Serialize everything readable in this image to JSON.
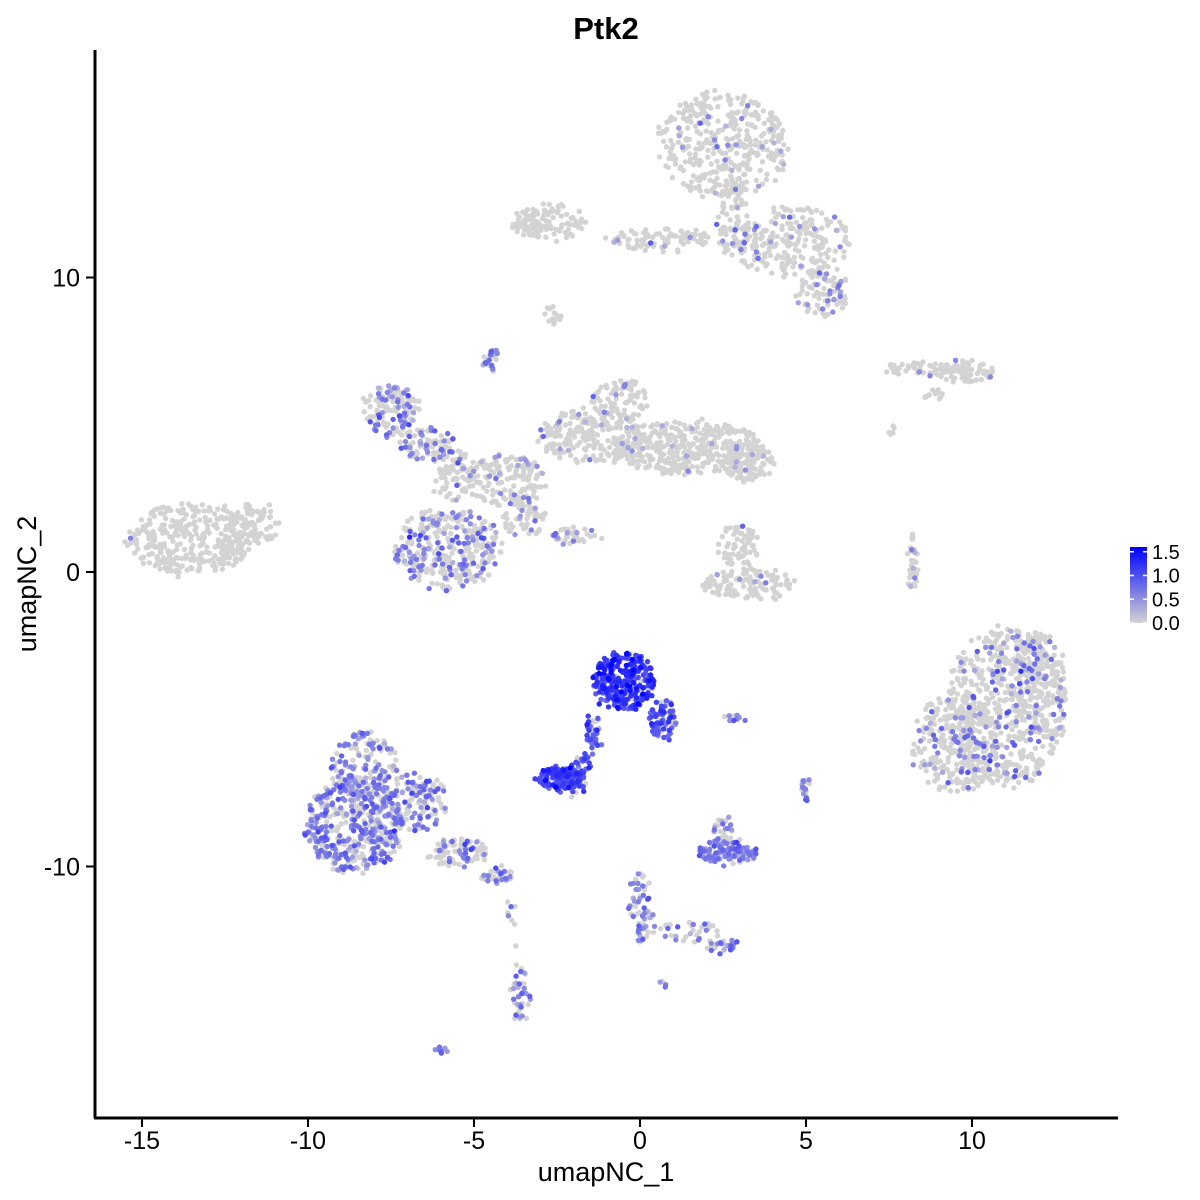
{
  "chart_data": {
    "type": "scatter",
    "title": "Ptk2",
    "xlabel": "umapNC_1",
    "ylabel": "umapNC_2",
    "xlim": [
      -16.5,
      14.5
    ],
    "ylim": [
      -18.5,
      17.5
    ],
    "x_ticks": [
      -15,
      -10,
      -5,
      0,
      5,
      10
    ],
    "x_tick_labels": [
      "-15",
      "-10",
      "-5",
      "0",
      "5",
      "10"
    ],
    "y_ticks": [
      -10,
      0,
      10
    ],
    "y_tick_labels": [
      "-10",
      "0",
      "10"
    ],
    "grid": false,
    "legend": {
      "position": "right",
      "type": "colorbar",
      "values": [
        0.0,
        0.5,
        1.0,
        1.5
      ],
      "labels": [
        "0.0",
        "0.5",
        "1.0",
        "1.5"
      ],
      "max": 1.6
    },
    "colors": {
      "low": "#d3d3d3",
      "high": "#0000ff"
    },
    "clusters": [
      {
        "cx": 2.5,
        "cy": 14.5,
        "rx": 2.0,
        "ry": 1.8,
        "n": 380,
        "expr_frac": 0.07,
        "expr_mean": 0.5
      },
      {
        "cx": 4.5,
        "cy": 11.2,
        "rx": 1.8,
        "ry": 1.2,
        "n": 220,
        "expr_frac": 0.07,
        "expr_mean": 0.5
      },
      {
        "cx": 5.5,
        "cy": 9.5,
        "rx": 0.8,
        "ry": 0.8,
        "n": 90,
        "expr_frac": 0.2,
        "expr_mean": 0.55
      },
      {
        "cx": -2.8,
        "cy": 11.9,
        "rx": 1.1,
        "ry": 0.6,
        "n": 120,
        "expr_frac": 0.0,
        "expr_mean": 0.0
      },
      {
        "cx": 0.5,
        "cy": 11.3,
        "rx": 1.6,
        "ry": 0.35,
        "n": 90,
        "expr_frac": 0.04,
        "expr_mean": 0.45
      },
      {
        "cx": 2.8,
        "cy": 12.0,
        "rx": 0.5,
        "ry": 1.4,
        "n": 80,
        "expr_frac": 0.06,
        "expr_mean": 0.5
      },
      {
        "cx": -2.6,
        "cy": 8.8,
        "rx": 0.25,
        "ry": 0.4,
        "n": 14,
        "expr_frac": 0.0,
        "expr_mean": 0.0
      },
      {
        "cx": -1.8,
        "cy": 4.7,
        "rx": 0.4,
        "ry": 0.5,
        "n": 18,
        "expr_frac": 0.0,
        "expr_mean": 0.0
      },
      {
        "cx": -4.5,
        "cy": 7.2,
        "rx": 0.2,
        "ry": 0.4,
        "n": 25,
        "expr_frac": 0.5,
        "expr_mean": 0.6
      },
      {
        "cx": 8.5,
        "cy": 6.9,
        "rx": 1.2,
        "ry": 0.25,
        "n": 50,
        "expr_frac": 0.06,
        "expr_mean": 0.5
      },
      {
        "cx": 9.8,
        "cy": 6.8,
        "rx": 0.9,
        "ry": 0.35,
        "n": 60,
        "expr_frac": 0.04,
        "expr_mean": 0.5
      },
      {
        "cx": 8.9,
        "cy": 6.0,
        "rx": 0.3,
        "ry": 0.2,
        "n": 10,
        "expr_frac": 0.0,
        "expr_mean": 0.0
      },
      {
        "cx": 7.6,
        "cy": 4.8,
        "rx": 0.15,
        "ry": 0.25,
        "n": 6,
        "expr_frac": 0.0,
        "expr_mean": 0.0
      },
      {
        "cx": -13.5,
        "cy": 1.1,
        "rx": 2.0,
        "ry": 1.2,
        "n": 330,
        "expr_frac": 0.01,
        "expr_mean": 0.5
      },
      {
        "cx": -11.6,
        "cy": 1.6,
        "rx": 0.8,
        "ry": 0.7,
        "n": 80,
        "expr_frac": 0.0,
        "expr_mean": 0.0
      },
      {
        "cx": -7.5,
        "cy": 5.5,
        "rx": 0.8,
        "ry": 0.9,
        "n": 130,
        "expr_frac": 0.4,
        "expr_mean": 0.6
      },
      {
        "cx": -6.4,
        "cy": 4.3,
        "rx": 0.8,
        "ry": 0.6,
        "n": 80,
        "expr_frac": 0.3,
        "expr_mean": 0.6
      },
      {
        "cx": -5.6,
        "cy": 3.3,
        "rx": 0.7,
        "ry": 0.9,
        "n": 80,
        "expr_frac": 0.15,
        "expr_mean": 0.6
      },
      {
        "cx": -4.0,
        "cy": 3.1,
        "rx": 1.2,
        "ry": 0.9,
        "n": 150,
        "expr_frac": 0.07,
        "expr_mean": 0.5
      },
      {
        "cx": -5.8,
        "cy": 0.8,
        "rx": 1.6,
        "ry": 1.4,
        "n": 330,
        "expr_frac": 0.32,
        "expr_mean": 0.6
      },
      {
        "cx": -3.5,
        "cy": 1.8,
        "rx": 0.6,
        "ry": 0.7,
        "n": 60,
        "expr_frac": 0.15,
        "expr_mean": 0.6
      },
      {
        "cx": -1.5,
        "cy": 4.6,
        "rx": 1.6,
        "ry": 0.9,
        "n": 180,
        "expr_frac": 0.06,
        "expr_mean": 0.5
      },
      {
        "cx": -0.6,
        "cy": 5.7,
        "rx": 0.9,
        "ry": 0.9,
        "n": 90,
        "expr_frac": 0.06,
        "expr_mean": 0.5
      },
      {
        "cx": 1.5,
        "cy": 4.2,
        "rx": 2.4,
        "ry": 0.9,
        "n": 400,
        "expr_frac": 0.04,
        "expr_mean": 0.5
      },
      {
        "cx": 3.2,
        "cy": 3.7,
        "rx": 0.8,
        "ry": 0.6,
        "n": 90,
        "expr_frac": 0.04,
        "expr_mean": 0.5
      },
      {
        "cx": -2.0,
        "cy": 1.2,
        "rx": 0.8,
        "ry": 0.25,
        "n": 40,
        "expr_frac": 0.25,
        "expr_mean": 0.55
      },
      {
        "cx": 3.0,
        "cy": 0.8,
        "rx": 0.6,
        "ry": 0.8,
        "n": 70,
        "expr_frac": 0.02,
        "expr_mean": 0.5
      },
      {
        "cx": 3.3,
        "cy": -0.4,
        "rx": 1.5,
        "ry": 0.5,
        "n": 120,
        "expr_frac": 0.03,
        "expr_mean": 0.5
      },
      {
        "cx": 8.2,
        "cy": 0.4,
        "rx": 0.15,
        "ry": 0.9,
        "n": 35,
        "expr_frac": 0.08,
        "expr_mean": 0.5
      },
      {
        "cx": 11.0,
        "cy": -4.6,
        "rx": 1.8,
        "ry": 2.7,
        "n": 560,
        "expr_frac": 0.12,
        "expr_mean": 0.6
      },
      {
        "cx": 9.5,
        "cy": -5.8,
        "rx": 1.3,
        "ry": 1.7,
        "n": 300,
        "expr_frac": 0.12,
        "expr_mean": 0.6
      },
      {
        "cx": 12.0,
        "cy": -3.8,
        "rx": 0.8,
        "ry": 1.8,
        "n": 180,
        "expr_frac": 0.12,
        "expr_mean": 0.6
      },
      {
        "cx": -0.5,
        "cy": -3.7,
        "rx": 0.9,
        "ry": 1.0,
        "n": 280,
        "expr_frac": 0.9,
        "expr_mean": 1.15
      },
      {
        "cx": 0.7,
        "cy": -5.0,
        "rx": 0.4,
        "ry": 0.7,
        "n": 70,
        "expr_frac": 0.8,
        "expr_mean": 0.9
      },
      {
        "cx": -1.4,
        "cy": -5.5,
        "rx": 0.25,
        "ry": 0.6,
        "n": 40,
        "expr_frac": 0.7,
        "expr_mean": 0.85
      },
      {
        "cx": -2.4,
        "cy": -7.0,
        "rx": 0.7,
        "ry": 0.35,
        "n": 150,
        "expr_frac": 0.9,
        "expr_mean": 1.05
      },
      {
        "cx": -1.8,
        "cy": -6.5,
        "rx": 0.3,
        "ry": 0.4,
        "n": 30,
        "expr_frac": 0.8,
        "expr_mean": 0.9
      },
      {
        "cx": -8.6,
        "cy": -8.6,
        "rx": 1.5,
        "ry": 1.6,
        "n": 440,
        "expr_frac": 0.6,
        "expr_mean": 0.62
      },
      {
        "cx": -8.3,
        "cy": -6.6,
        "rx": 1.0,
        "ry": 1.2,
        "n": 160,
        "expr_frac": 0.55,
        "expr_mean": 0.62
      },
      {
        "cx": -6.8,
        "cy": -7.8,
        "rx": 1.0,
        "ry": 1.0,
        "n": 140,
        "expr_frac": 0.45,
        "expr_mean": 0.62
      },
      {
        "cx": -5.5,
        "cy": -9.5,
        "rx": 0.9,
        "ry": 0.5,
        "n": 90,
        "expr_frac": 0.35,
        "expr_mean": 0.62
      },
      {
        "cx": -4.3,
        "cy": -10.3,
        "rx": 0.5,
        "ry": 0.25,
        "n": 40,
        "expr_frac": 0.4,
        "expr_mean": 0.62
      },
      {
        "cx": -3.6,
        "cy": -14.3,
        "rx": 0.25,
        "ry": 1.0,
        "n": 40,
        "expr_frac": 0.55,
        "expr_mean": 0.62
      },
      {
        "cx": -3.8,
        "cy": -11.8,
        "rx": 0.2,
        "ry": 1.0,
        "n": 8,
        "expr_frac": 0.2,
        "expr_mean": 0.6
      },
      {
        "cx": 2.6,
        "cy": -9.5,
        "rx": 0.9,
        "ry": 0.4,
        "n": 110,
        "expr_frac": 0.65,
        "expr_mean": 0.62
      },
      {
        "cx": 2.5,
        "cy": -8.8,
        "rx": 0.3,
        "ry": 0.5,
        "n": 30,
        "expr_frac": 0.3,
        "expr_mean": 0.6
      },
      {
        "cx": 0.0,
        "cy": -11.3,
        "rx": 0.3,
        "ry": 1.3,
        "n": 60,
        "expr_frac": 0.6,
        "expr_mean": 0.62
      },
      {
        "cx": 1.4,
        "cy": -12.2,
        "rx": 1.0,
        "ry": 0.4,
        "n": 35,
        "expr_frac": 0.4,
        "expr_mean": 0.6
      },
      {
        "cx": 2.4,
        "cy": -12.7,
        "rx": 0.4,
        "ry": 0.25,
        "n": 25,
        "expr_frac": 0.6,
        "expr_mean": 0.62
      },
      {
        "cx": -2.0,
        "cy": -7.3,
        "rx": 0.4,
        "ry": 0.6,
        "n": 20,
        "expr_frac": 0.6,
        "expr_mean": 0.9
      },
      {
        "cx": 5.0,
        "cy": -7.4,
        "rx": 0.15,
        "ry": 0.4,
        "n": 18,
        "expr_frac": 0.6,
        "expr_mean": 0.62
      },
      {
        "cx": 2.9,
        "cy": -5.0,
        "rx": 0.3,
        "ry": 0.15,
        "n": 14,
        "expr_frac": 0.6,
        "expr_mean": 0.62
      },
      {
        "cx": -6.0,
        "cy": -16.2,
        "rx": 0.15,
        "ry": 0.1,
        "n": 8,
        "expr_frac": 0.8,
        "expr_mean": 0.62
      },
      {
        "cx": 0.7,
        "cy": -14.0,
        "rx": 0.1,
        "ry": 0.1,
        "n": 4,
        "expr_frac": 0.8,
        "expr_mean": 0.62
      }
    ]
  }
}
